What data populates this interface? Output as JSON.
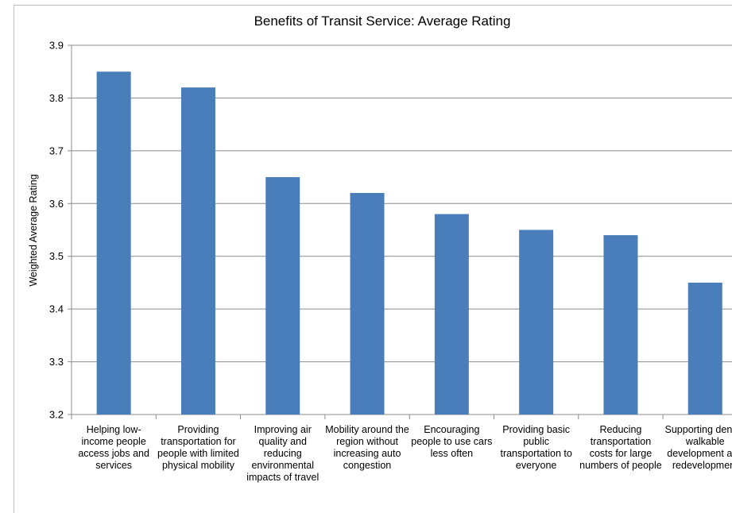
{
  "chart_data": {
    "type": "bar",
    "title": "Benefits of Transit Service: Average Rating",
    "ylabel": "Weighted Average Rating",
    "categories": [
      "Helping low-income people access jobs and services",
      "Providing transportation for people with limited physical mobility",
      "Improving air quality and reducing environmental impacts of travel",
      "Mobility around the region without increasing auto congestion",
      "Encouraging people to use cars less often",
      "Providing basic public transportation to everyone",
      "Reducing transportation costs for large numbers of people",
      "Supporting dense, walkable development and redevelopment"
    ],
    "values": [
      3.85,
      3.82,
      3.65,
      3.62,
      3.58,
      3.55,
      3.54,
      3.45
    ],
    "color": "#4a7ebb",
    "ylim": [
      3.2,
      3.9
    ],
    "yticks": [
      3.2,
      3.3,
      3.4,
      3.5,
      3.6,
      3.7,
      3.8,
      3.9
    ],
    "grid": true
  }
}
